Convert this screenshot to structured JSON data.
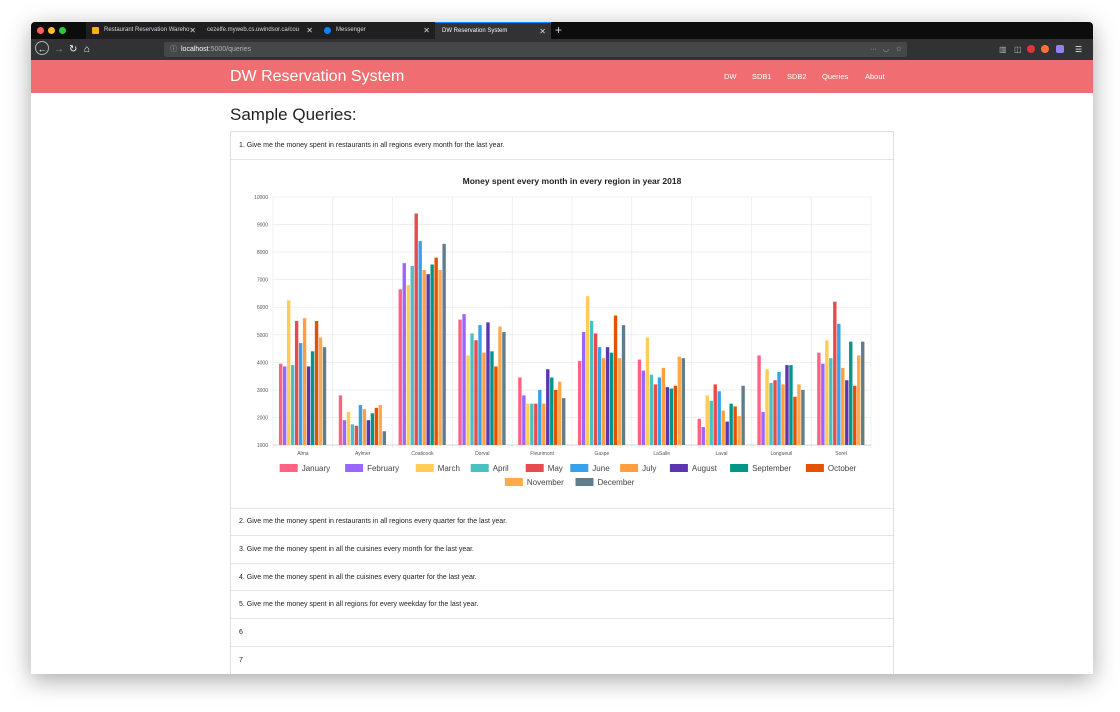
{
  "browser": {
    "tabs": [
      {
        "title": "Restaurant Reservation Wareho",
        "icon_color": "#f5b400"
      },
      {
        "title": "cezelfe.myweb.cs.uwindsor.ca/cou",
        "icon_color": ""
      },
      {
        "title": "Messenger",
        "icon_color": "#0a84ff"
      },
      {
        "title": "DW Reservation System",
        "icon_color": ""
      }
    ],
    "url_host": "localhost",
    "url_rest": ":5000/queries",
    "new_tab_label": "+"
  },
  "navbar": {
    "brand": "DW Reservation System",
    "links": [
      "DW",
      "SDB1",
      "SDB2",
      "Queries",
      "About"
    ]
  },
  "page": {
    "title": "Sample Queries:"
  },
  "queries": [
    "1. Give me the money spent in restaurants in all regions every month for the last year.",
    "2. Give me the money spent in restaurants in all regions every quarter for the last year.",
    "3. Give me the money spent in all the cuisines every month for the last year.",
    "4. Give me the money spent in all the cuisines every quarter for the last year.",
    "5. Give me the money spent in all regions for every weekday for the last year.",
    "6",
    "7"
  ],
  "chart_data": {
    "type": "bar",
    "title": "Money spent every month in every region in year 2018",
    "categories": [
      "Alma",
      "Aylmer",
      "Coaticook",
      "Dorval",
      "Fleurimont",
      "Gaspe",
      "LaSalle",
      "Laval",
      "Longueuil",
      "Sorel"
    ],
    "ylim": [
      1000,
      10000
    ],
    "yticks": [
      1000,
      2000,
      3000,
      4000,
      5000,
      6000,
      7000,
      8000,
      9000,
      10000
    ],
    "legend_position": "bottom",
    "grid": true,
    "series": [
      {
        "name": "January",
        "color": "#ff6384",
        "values": [
          3950,
          2800,
          6650,
          5550,
          3450,
          4050,
          4100,
          1950,
          4250,
          4350
        ]
      },
      {
        "name": "February",
        "color": "#9966ff",
        "values": [
          3850,
          1900,
          7600,
          5750,
          2800,
          5100,
          3700,
          1650,
          2200,
          3950
        ]
      },
      {
        "name": "March",
        "color": "#ffcd56",
        "values": [
          6250,
          2200,
          6800,
          4250,
          2500,
          6400,
          4900,
          2800,
          3750,
          4800
        ]
      },
      {
        "name": "April",
        "color": "#4bc0c0",
        "values": [
          3900,
          1750,
          7500,
          5050,
          2500,
          5500,
          3550,
          2600,
          3250,
          4150
        ]
      },
      {
        "name": "May",
        "color": "#e74c4c",
        "values": [
          5500,
          1700,
          9400,
          4800,
          2500,
          5050,
          3200,
          3200,
          3350,
          6200
        ]
      },
      {
        "name": "June",
        "color": "#36a2eb",
        "values": [
          4700,
          2450,
          8400,
          5350,
          3000,
          4550,
          3450,
          2950,
          3650,
          5400
        ]
      },
      {
        "name": "July",
        "color": "#ff9f40",
        "values": [
          5600,
          2300,
          7350,
          4350,
          2500,
          4150,
          3800,
          2250,
          3200,
          3800
        ]
      },
      {
        "name": "August",
        "color": "#5e35b1",
        "values": [
          3850,
          1900,
          7200,
          5450,
          3750,
          4550,
          3100,
          1850,
          3900,
          3350
        ]
      },
      {
        "name": "September",
        "color": "#009688",
        "values": [
          4400,
          2150,
          7550,
          4400,
          3450,
          4350,
          3050,
          2500,
          3900,
          4750
        ]
      },
      {
        "name": "October",
        "color": "#e65100",
        "values": [
          5500,
          2350,
          7800,
          3850,
          3000,
          5700,
          3150,
          2400,
          2750,
          3150
        ]
      },
      {
        "name": "November",
        "color": "#ffa94d",
        "values": [
          4900,
          2450,
          7350,
          5300,
          3300,
          4150,
          4200,
          2050,
          3200,
          4250
        ]
      },
      {
        "name": "December",
        "color": "#607d8b",
        "values": [
          4550,
          1500,
          8300,
          5100,
          2700,
          5350,
          4150,
          3150,
          3000,
          4750
        ]
      }
    ]
  }
}
